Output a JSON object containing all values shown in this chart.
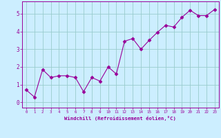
{
  "x": [
    0,
    1,
    2,
    3,
    4,
    5,
    6,
    7,
    8,
    9,
    10,
    11,
    12,
    13,
    14,
    15,
    16,
    17,
    18,
    19,
    20,
    21,
    22,
    23
  ],
  "y": [
    0.7,
    0.3,
    1.85,
    1.4,
    1.5,
    1.5,
    1.4,
    0.6,
    1.4,
    1.2,
    2.0,
    1.6,
    3.45,
    3.6,
    3.0,
    3.5,
    3.95,
    4.35,
    4.25,
    4.8,
    5.2,
    4.9,
    4.9,
    5.25
  ],
  "line_color": "#990099",
  "marker": "D",
  "marker_size": 2.5,
  "background_color": "#cceeff",
  "grid_color": "#99cccc",
  "xlabel": "Windchill (Refroidissement éolien,°C)",
  "xlabel_color": "#990099",
  "tick_color": "#990099",
  "xlim": [
    -0.5,
    23.5
  ],
  "ylim": [
    -0.3,
    5.7
  ],
  "yticks": [
    0,
    1,
    2,
    3,
    4,
    5
  ],
  "xticks": [
    0,
    1,
    2,
    3,
    4,
    5,
    6,
    7,
    8,
    9,
    10,
    11,
    12,
    13,
    14,
    15,
    16,
    17,
    18,
    19,
    20,
    21,
    22,
    23
  ]
}
